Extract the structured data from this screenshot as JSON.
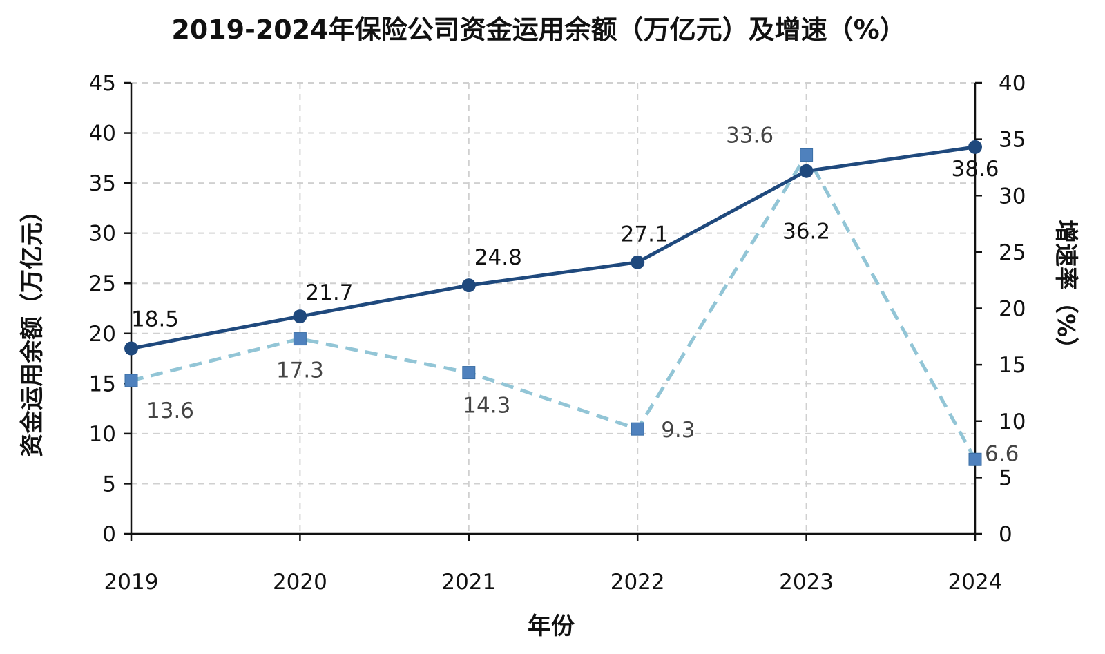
{
  "chart_data": {
    "type": "line",
    "title": "2019-2024年保险公司资金运用余额（万亿元）及增速（%）",
    "xlabel": "年份",
    "ylabel": "资金运用余额（万亿元）",
    "y2label": "增速率（%）",
    "categories": [
      "2019",
      "2020",
      "2021",
      "2022",
      "2023",
      "2024"
    ],
    "ylim": [
      0,
      45
    ],
    "yticks": [
      0,
      5,
      10,
      15,
      20,
      25,
      30,
      35,
      40,
      45
    ],
    "y2lim": [
      0,
      40
    ],
    "y2ticks": [
      0,
      5,
      10,
      15,
      20,
      25,
      30,
      35,
      40
    ],
    "grid": true,
    "legend": "none",
    "series": [
      {
        "axis": "left",
        "values": [
          18.5,
          21.7,
          24.8,
          27.1,
          36.2,
          38.6
        ],
        "labels": [
          "18.5",
          "21.7",
          "24.8",
          "27.1",
          "36.2",
          "38.6"
        ],
        "color": "#1f497d",
        "marker": "circle",
        "line_style": "solid"
      },
      {
        "axis": "right",
        "values": [
          13.6,
          17.3,
          14.3,
          9.3,
          33.6,
          6.6
        ],
        "labels": [
          "13.6",
          "17.3",
          "14.3",
          "9.3",
          "33.6",
          "6.6"
        ],
        "color": "#92c5d6",
        "marker_color": "#4f81bd",
        "marker": "square",
        "line_style": "dashed"
      }
    ]
  }
}
